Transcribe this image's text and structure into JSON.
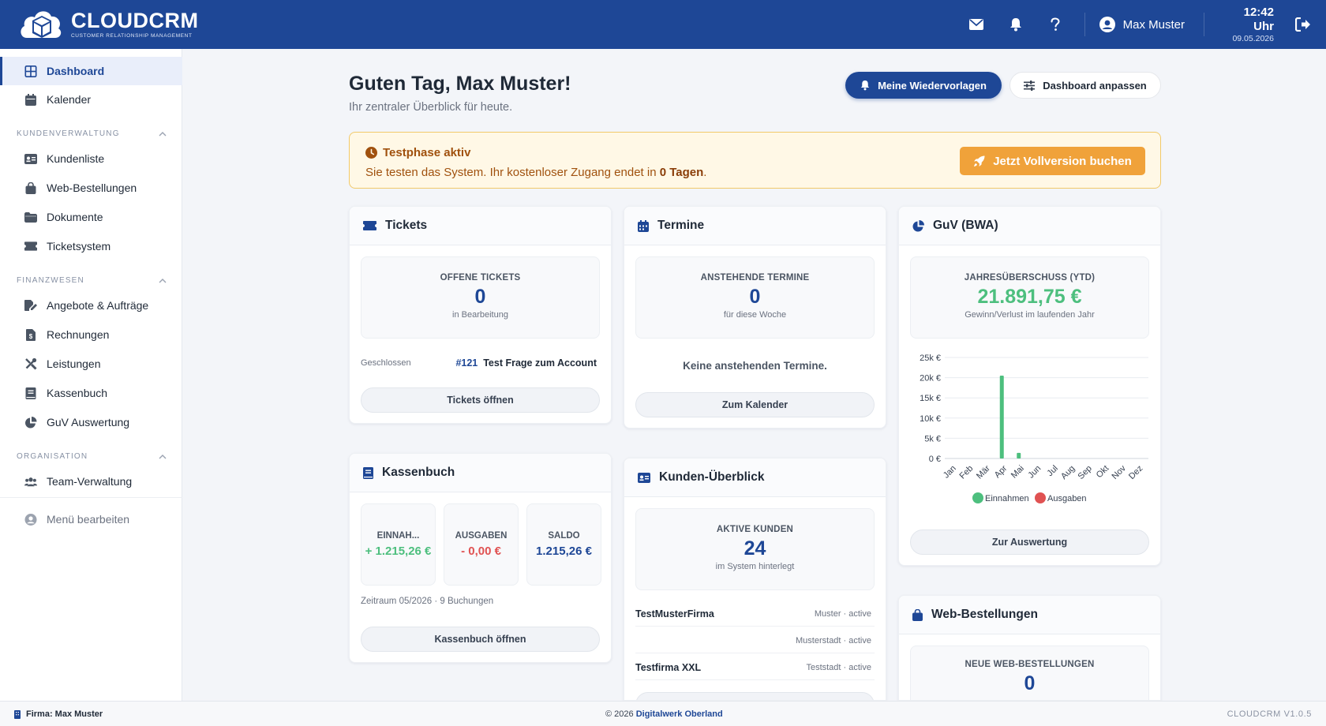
{
  "header": {
    "logo_text": "CLOUDCRM",
    "logo_sub": "CUSTOMER RELATIONSHIP MANAGEMENT",
    "user_name": "Max Muster",
    "time": "12:42 Uhr",
    "date": "09.05.2026"
  },
  "sidebar": {
    "items_top": [
      {
        "label": "Dashboard",
        "icon": "grid-icon"
      },
      {
        "label": "Kalender",
        "icon": "calendar-icon"
      }
    ],
    "sections": [
      {
        "title": "KUNDENVERWALTUNG",
        "items": [
          {
            "label": "Kundenliste",
            "icon": "id-card-icon"
          },
          {
            "label": "Web-Bestellungen",
            "icon": "bag-icon"
          },
          {
            "label": "Dokumente",
            "icon": "folder-icon"
          },
          {
            "label": "Ticketsystem",
            "icon": "ticket-icon"
          }
        ]
      },
      {
        "title": "FINANZWESEN",
        "items": [
          {
            "label": "Angebote & Aufträge",
            "icon": "file-signature-icon"
          },
          {
            "label": "Rechnungen",
            "icon": "invoice-icon"
          },
          {
            "label": "Leistungen",
            "icon": "tools-icon"
          },
          {
            "label": "Kassenbuch",
            "icon": "book-icon"
          },
          {
            "label": "GuV Auswertung",
            "icon": "pie-chart-icon"
          }
        ]
      },
      {
        "title": "ORGANISATION",
        "items": [
          {
            "label": "Team-Verwaltung",
            "icon": "users-icon"
          }
        ]
      }
    ],
    "menu_edit": "Menü bearbeiten"
  },
  "main": {
    "greeting": "Guten Tag, Max Muster!",
    "subtitle": "Ihr zentraler Überblick für heute.",
    "btn_wiedervorlagen": "Meine Wiedervorlagen",
    "btn_dashboard": "Dashboard anpassen",
    "trial": {
      "title": "Testphase aktiv",
      "text_before": "Sie testen das System. Ihr kostenloser Zugang endet in ",
      "days": "0 Tagen",
      "text_after": ".",
      "button": "Jetzt Vollversion buchen"
    }
  },
  "tickets": {
    "title": "Tickets",
    "stat_label": "OFFENE TICKETS",
    "stat_value": "0",
    "stat_sub": "in Bearbeitung",
    "row_status": "Geschlossen",
    "row_id": "#121",
    "row_title": "Test Frage zum Account",
    "button": "Tickets öffnen"
  },
  "termine": {
    "title": "Termine",
    "stat_label": "ANSTEHENDE TERMINE",
    "stat_value": "0",
    "stat_sub": "für diese Woche",
    "empty": "Keine anstehenden Termine.",
    "button": "Zum Kalender"
  },
  "guv": {
    "title": "GuV (BWA)",
    "stat_label": "JAHRESÜBERSCHUSS (YTD)",
    "stat_value": "21.891,75 €",
    "stat_sub": "Gewinn/Verlust im laufenden Jahr",
    "button": "Zur Auswertung",
    "colors": {
      "income": "#4dbf7e",
      "expense": "#e05252"
    }
  },
  "chart_data": {
    "type": "bar",
    "categories": [
      "Jan",
      "Feb",
      "Mär",
      "Apr",
      "Mai",
      "Jun",
      "Jul",
      "Aug",
      "Sep",
      "Okt",
      "Nov",
      "Dez"
    ],
    "series": [
      {
        "name": "Einnahmen",
        "values": [
          0,
          0,
          0,
          20500,
          1400,
          0,
          0,
          0,
          0,
          0,
          0,
          0
        ]
      },
      {
        "name": "Ausgaben",
        "values": [
          0,
          0,
          0,
          0,
          0,
          0,
          0,
          0,
          0,
          0,
          0,
          0
        ]
      }
    ],
    "y_ticks": [
      "0 €",
      "5k €",
      "10k €",
      "15k €",
      "20k €",
      "25k €"
    ],
    "ylim": [
      0,
      25000
    ],
    "legend": "bottom",
    "grid": true
  },
  "kassenbuch": {
    "title": "Kassenbuch",
    "boxes": [
      {
        "label": "EINNAH...",
        "value": "+ 1.215,26 €"
      },
      {
        "label": "AUSGABEN",
        "value": "- 0,00 €"
      },
      {
        "label": "SALDO",
        "value": "1.215,26 €"
      }
    ],
    "period": "Zeitraum 05/2026 · 9 Buchungen",
    "button": "Kassenbuch öffnen"
  },
  "kunden": {
    "title": "Kunden-Überblick",
    "stat_label": "AKTIVE KUNDEN",
    "stat_value": "24",
    "stat_sub": "im System hinterlegt",
    "rows": [
      {
        "name": "TestMusterFirma",
        "meta": "Muster · active"
      },
      {
        "name": "",
        "meta": "Musterstadt · active"
      },
      {
        "name": "Testfirma XXL",
        "meta": "Teststadt · active"
      }
    ]
  },
  "web": {
    "title": "Web-Bestellungen",
    "stat_label": "NEUE WEB-BESTELLUNGEN",
    "stat_value": "0"
  },
  "footer": {
    "company": "Firma: Max Muster",
    "copyright": "© 2026 ",
    "company_link": "Digitalwerk Oberland",
    "version": "CLOUDCRM V1.0.5"
  }
}
